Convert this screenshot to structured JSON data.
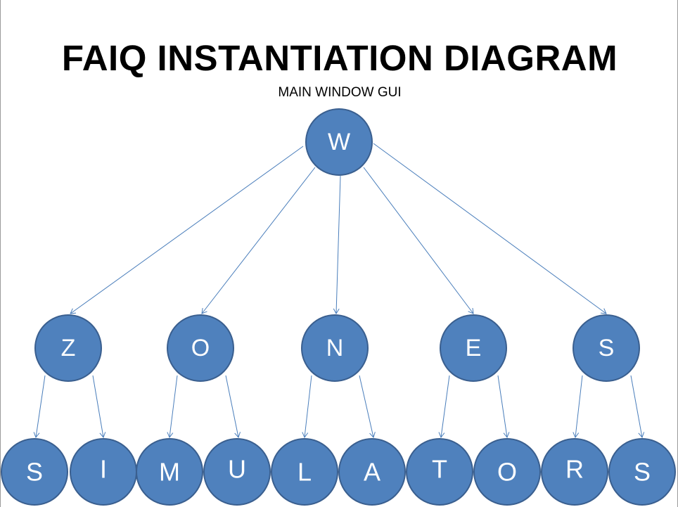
{
  "title": "FAIQ INSTANTIATION DIAGRAM",
  "subtitle": "MAIN WINDOW GUI",
  "colors": {
    "node_fill": "#4f81bd",
    "node_stroke": "#3a5f8f",
    "edge": "#4a7ebb",
    "letter": "#ffffff"
  },
  "root": {
    "letter": "W"
  },
  "middle": [
    {
      "letter": "Z",
      "children": [
        "S",
        "I"
      ]
    },
    {
      "letter": "O",
      "children": [
        "M",
        "U"
      ]
    },
    {
      "letter": "N",
      "children": [
        "L",
        "A"
      ]
    },
    {
      "letter": "E",
      "children": [
        "T",
        "O"
      ]
    },
    {
      "letter": "S",
      "children": [
        "R",
        "S"
      ]
    }
  ]
}
